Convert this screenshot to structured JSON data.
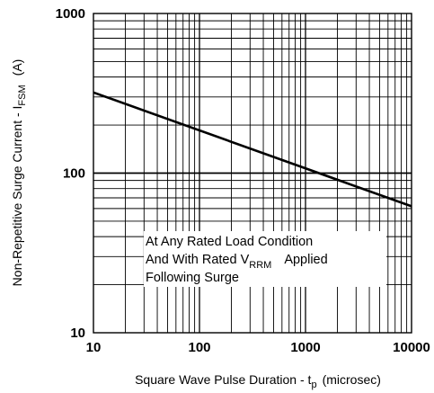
{
  "chart_data": {
    "type": "line",
    "xscale": "log",
    "yscale": "log",
    "xlim": [
      10,
      10000
    ],
    "ylim": [
      10,
      1000
    ],
    "grid": true,
    "x_ticks": [
      "10",
      "100",
      "1000",
      "10000"
    ],
    "y_ticks": [
      "10",
      "100",
      "1000"
    ],
    "xlabel": {
      "main": "Square Wave Pulse Duration - t",
      "sub": "p",
      "unit": "(microsec)"
    },
    "ylabel": {
      "main": "Non-Repetitive Surge Current - I",
      "sub": "FSM",
      "unit": "(A)"
    },
    "annotation": {
      "line1": "At Any Rated Load Condition",
      "line2_pre": "And With Rated V",
      "line2_sub": "RRM",
      "line2_post": "Applied",
      "line3": "Following Surge"
    },
    "series": [
      {
        "x": [
          10,
          10000
        ],
        "y": [
          320,
          62
        ]
      }
    ],
    "line_color": "#000000"
  }
}
